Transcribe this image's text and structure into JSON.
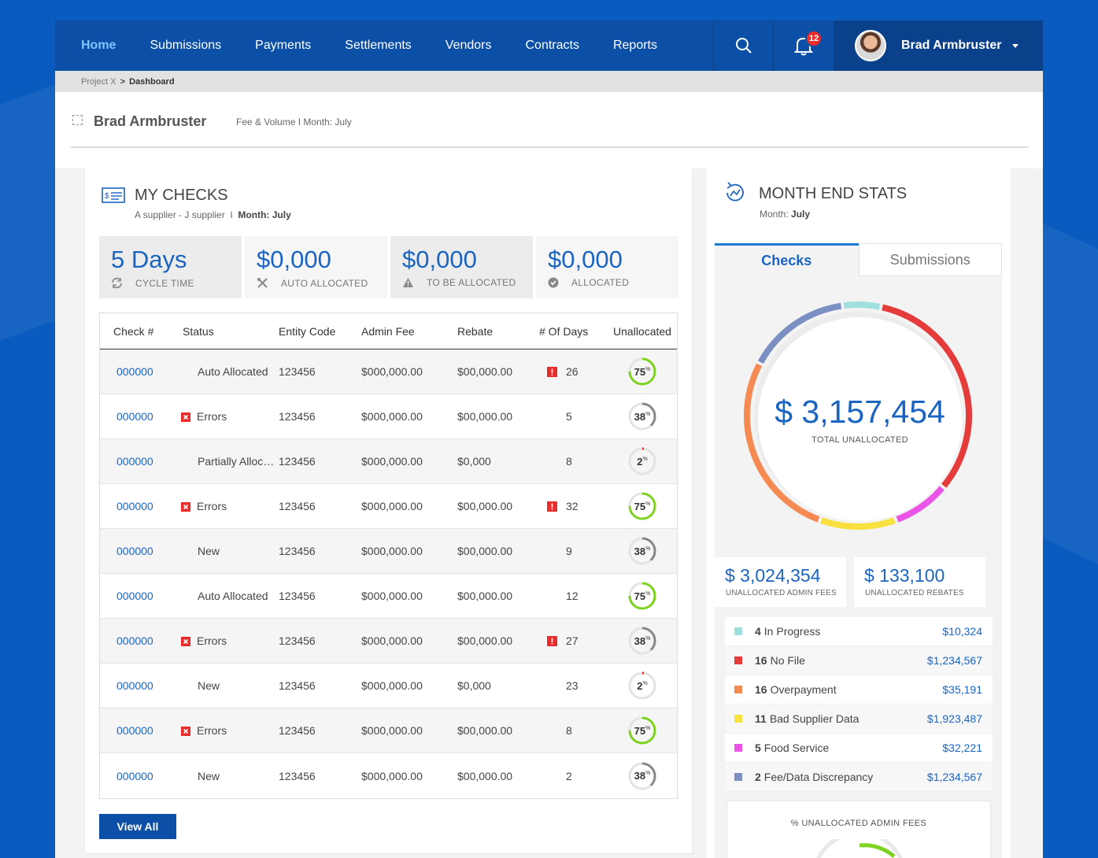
{
  "nav": {
    "items": [
      "Home",
      "Submissions",
      "Payments",
      "Settlements",
      "Vendors",
      "Contracts",
      "Reports"
    ],
    "active": "Home",
    "notifications": "12",
    "user_name": "Brad Armbruster"
  },
  "breadcrumb": {
    "root": "Project X",
    "sep": ">",
    "current": "Dashboard"
  },
  "page": {
    "title": "Brad Armbruster",
    "meta": "Fee & Volume  I  Month: July"
  },
  "checks": {
    "title": "MY CHECKS",
    "subtitle": "A supplier - J supplier",
    "subtitle_sep": "I",
    "month": "Month: July",
    "kpis": [
      {
        "value": "5 Days",
        "label": "CYCLE TIME",
        "icon": "refresh-icon"
      },
      {
        "value": "$0,000",
        "label": "AUTO ALLOCATED",
        "icon": "tools-icon"
      },
      {
        "value": "$0,000",
        "label": "TO BE ALLOCATED",
        "icon": "warning-icon"
      },
      {
        "value": "$0,000",
        "label": "ALLOCATED",
        "icon": "check-circle-icon"
      }
    ],
    "columns": [
      "Check #",
      "Status",
      "Entity Code",
      "Admin Fee",
      "Rebate",
      "# Of Days",
      "Unallocated"
    ],
    "rows": [
      {
        "check": "000000",
        "status": "Auto Allocated",
        "error": false,
        "entity": "123456",
        "admin": "$000,000.00",
        "rebate": "$00,000.00",
        "warn": true,
        "days": "26",
        "pct": 75
      },
      {
        "check": "000000",
        "status": "Errors",
        "error": true,
        "entity": "123456",
        "admin": "$000,000.00",
        "rebate": "$00,000.00",
        "warn": false,
        "days": "5",
        "pct": 38
      },
      {
        "check": "000000",
        "status": "Partially Allocated",
        "error": false,
        "entity": "123456",
        "admin": "$000,000.00",
        "rebate": "$0,000",
        "warn": false,
        "days": "8",
        "pct": 2
      },
      {
        "check": "000000",
        "status": "Errors",
        "error": true,
        "entity": "123456",
        "admin": "$000,000.00",
        "rebate": "$00,000.00",
        "warn": true,
        "days": "32",
        "pct": 75
      },
      {
        "check": "000000",
        "status": "New",
        "error": false,
        "entity": "123456",
        "admin": "$000,000.00",
        "rebate": "$00,000.00",
        "warn": false,
        "days": "9",
        "pct": 38
      },
      {
        "check": "000000",
        "status": "Auto Allocated",
        "error": false,
        "entity": "123456",
        "admin": "$000,000.00",
        "rebate": "$00,000.00",
        "warn": false,
        "days": "12",
        "pct": 75
      },
      {
        "check": "000000",
        "status": "Errors",
        "error": true,
        "entity": "123456",
        "admin": "$000,000.00",
        "rebate": "$00,000.00",
        "warn": true,
        "days": "27",
        "pct": 38
      },
      {
        "check": "000000",
        "status": "New",
        "error": false,
        "entity": "123456",
        "admin": "$000,000.00",
        "rebate": "$0,000",
        "warn": false,
        "days": "23",
        "pct": 2
      },
      {
        "check": "000000",
        "status": "Errors",
        "error": true,
        "entity": "123456",
        "admin": "$000,000.00",
        "rebate": "$00,000.00",
        "warn": false,
        "days": "8",
        "pct": 75
      },
      {
        "check": "000000",
        "status": "New",
        "error": false,
        "entity": "123456",
        "admin": "$000,000.00",
        "rebate": "$00,000.00",
        "warn": false,
        "days": "2",
        "pct": 38
      }
    ],
    "view_all": "View All"
  },
  "stats": {
    "title": "MONTH END STATS",
    "month_label": "Month:",
    "month": "July",
    "tabs": [
      "Checks",
      "Submissions"
    ],
    "active_tab": "Checks",
    "total": "$ 3,157,454",
    "total_label": "TOTAL UNALLOCATED",
    "admin_fees": "$ 3,024,354",
    "admin_fees_label": "UNALLOCATED ADMIN FEES",
    "rebates": "$ 133,100",
    "rebates_label": "UNALLOCATED REBATES",
    "legend": [
      {
        "count": "4",
        "label": "In Progress",
        "amount": "$10,324",
        "color": "#9fe0de"
      },
      {
        "count": "16",
        "label": "No File",
        "amount": "$1,234,567",
        "color": "#e53b3b"
      },
      {
        "count": "16",
        "label": "Overpayment",
        "amount": "$35,191",
        "color": "#f58a52"
      },
      {
        "count": "11",
        "label": "Bad Supplier Data",
        "amount": "$1,923,487",
        "color": "#f8e03f"
      },
      {
        "count": "5",
        "label": "Food Service",
        "amount": "$32,221",
        "color": "#ea55e8"
      },
      {
        "count": "2",
        "label": "Fee/Data Discrepancy",
        "amount": "$1,234,567",
        "color": "#7b8fc3"
      }
    ],
    "pct_label": "% UNALLOCATED ADMIN FEES"
  },
  "colors": {
    "accent": "#1a64c2",
    "nav": "#0b4fa6",
    "ring_green": "#7ed321",
    "ring_gray": "#888888",
    "ring_red": "#e82b2b"
  }
}
